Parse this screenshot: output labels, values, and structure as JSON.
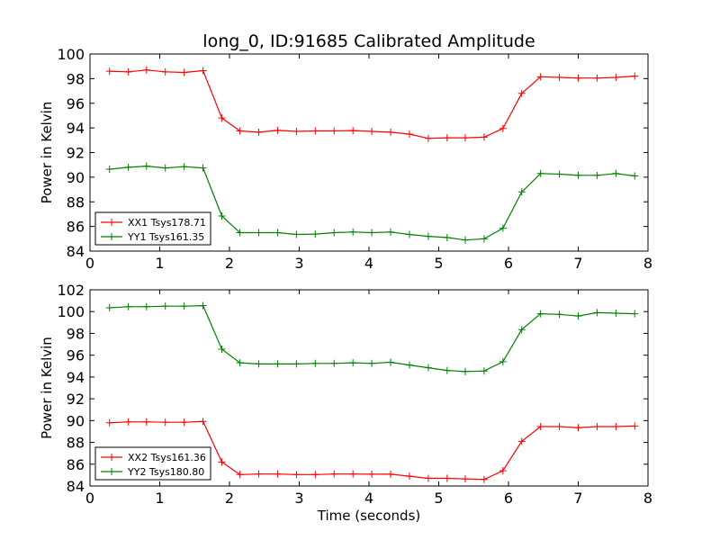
{
  "chart_data": [
    {
      "type": "line",
      "title": "long_0, ID:91685 Calibrated Amplitude",
      "xlabel": "",
      "ylabel": "Power in Kelvin",
      "xlim": [
        0,
        8
      ],
      "ylim": [
        84,
        100
      ],
      "xticks": [
        "0",
        "1",
        "2",
        "3",
        "4",
        "5",
        "6",
        "7",
        "8"
      ],
      "yticks": [
        "84",
        "86",
        "88",
        "90",
        "92",
        "94",
        "96",
        "98",
        "100"
      ],
      "grid": false,
      "legend_position": "lower-left",
      "x": [
        0.28,
        0.55,
        0.81,
        1.08,
        1.35,
        1.62,
        1.89,
        2.15,
        2.42,
        2.69,
        2.96,
        3.23,
        3.5,
        3.77,
        4.04,
        4.31,
        4.58,
        4.85,
        5.12,
        5.38,
        5.65,
        5.92,
        6.19,
        6.46,
        6.73,
        7.0,
        7.27,
        7.54,
        7.81
      ],
      "series": [
        {
          "name": "XX1 Tsys178.71",
          "color": "#ff0000",
          "values": [
            98.6,
            98.55,
            98.7,
            98.55,
            98.5,
            98.65,
            94.8,
            93.75,
            93.65,
            93.8,
            93.72,
            93.75,
            93.75,
            93.78,
            93.72,
            93.65,
            93.5,
            93.15,
            93.2,
            93.2,
            93.25,
            93.95,
            96.8,
            98.15,
            98.1,
            98.05,
            98.05,
            98.1,
            98.2
          ]
        },
        {
          "name": "YY1 Tsys161.35",
          "color": "#008000",
          "values": [
            90.65,
            90.8,
            90.9,
            90.75,
            90.85,
            90.75,
            86.85,
            85.5,
            85.5,
            85.5,
            85.35,
            85.38,
            85.5,
            85.55,
            85.5,
            85.55,
            85.35,
            85.2,
            85.1,
            84.9,
            85.0,
            85.85,
            88.8,
            90.3,
            90.25,
            90.15,
            90.15,
            90.3,
            90.1
          ]
        }
      ]
    },
    {
      "type": "line",
      "title": "",
      "xlabel": "Time (seconds)",
      "ylabel": "Power in Kelvin",
      "xlim": [
        0,
        8
      ],
      "ylim": [
        84,
        102
      ],
      "xticks": [
        "0",
        "1",
        "2",
        "3",
        "4",
        "5",
        "6",
        "7",
        "8"
      ],
      "yticks": [
        "84",
        "86",
        "88",
        "90",
        "92",
        "94",
        "96",
        "98",
        "100",
        "102"
      ],
      "grid": false,
      "legend_position": "lower-left",
      "x": [
        0.28,
        0.55,
        0.81,
        1.08,
        1.35,
        1.62,
        1.89,
        2.15,
        2.42,
        2.69,
        2.96,
        3.23,
        3.5,
        3.77,
        4.04,
        4.31,
        4.58,
        4.85,
        5.12,
        5.38,
        5.65,
        5.92,
        6.19,
        6.46,
        6.73,
        7.0,
        7.27,
        7.54,
        7.81
      ],
      "series": [
        {
          "name": "XX2 Tsys161.36",
          "color": "#ff0000",
          "values": [
            89.8,
            89.88,
            89.88,
            89.85,
            89.85,
            89.92,
            86.2,
            85.05,
            85.1,
            85.1,
            85.05,
            85.05,
            85.1,
            85.1,
            85.08,
            85.08,
            84.9,
            84.7,
            84.7,
            84.65,
            84.6,
            85.4,
            88.1,
            89.45,
            89.45,
            89.35,
            89.45,
            89.45,
            89.5
          ]
        },
        {
          "name": "YY2 Tsys180.80",
          "color": "#008000",
          "values": [
            100.35,
            100.45,
            100.45,
            100.5,
            100.5,
            100.55,
            96.55,
            95.3,
            95.2,
            95.2,
            95.2,
            95.25,
            95.25,
            95.3,
            95.25,
            95.35,
            95.1,
            94.85,
            94.6,
            94.5,
            94.55,
            95.4,
            98.35,
            99.8,
            99.75,
            99.6,
            99.9,
            99.85,
            99.8
          ]
        }
      ]
    }
  ]
}
